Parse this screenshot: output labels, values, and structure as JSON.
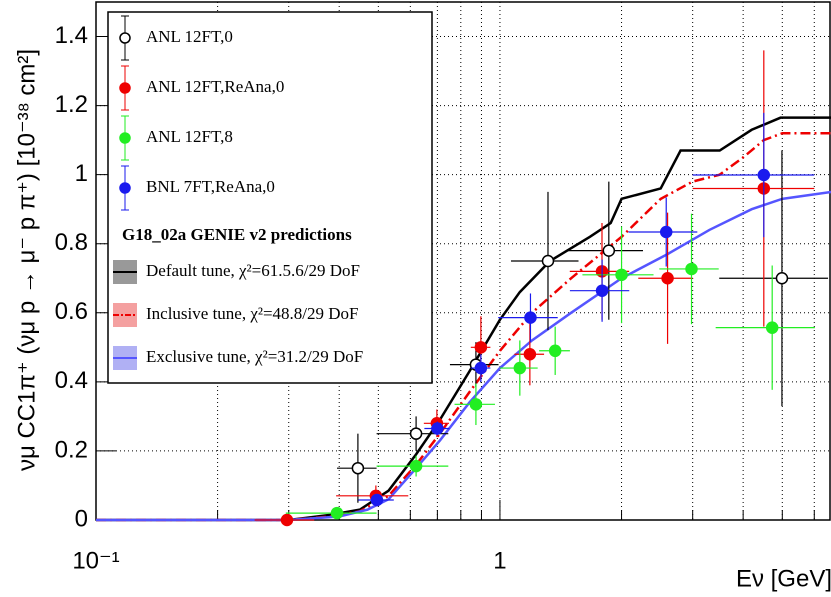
{
  "chart_data": {
    "type": "scatter",
    "x_label": "Eν [GeV]",
    "y_label": "νμ CC1π⁺ (νμ p → μ⁻ p π⁺) [10⁻³⁸ cm²]",
    "xscale": "log",
    "xlim": [
      0.1,
      6.6
    ],
    "ylim": [
      0,
      1.5
    ],
    "xticks": [
      {
        "value": 0.1,
        "label": "10⁻¹"
      },
      1
    ],
    "xgrid": [
      0.2,
      0.3,
      0.4,
      0.5,
      0.6,
      0.7,
      0.8,
      0.9,
      2,
      3,
      4,
      5,
      6
    ],
    "yticks": [
      0,
      0.2,
      0.4,
      0.6,
      0.8,
      1,
      1.2,
      1.4
    ],
    "grid": true,
    "legend_title": "G18_02a GENIE v2 predictions",
    "series": [
      {
        "name": "ANL 12FT,0",
        "style": "points",
        "color": "#000000",
        "open": true,
        "x": [
          0.445,
          0.62,
          0.872,
          1.315,
          1.86,
          4.99
        ],
        "values": [
          0.15,
          0.25,
          0.45,
          0.75,
          0.78,
          0.7
        ],
        "xerr": [
          0.05,
          0.125,
          0.12,
          0.25,
          0.4,
          1.5
        ],
        "yerr": [
          0.1,
          0.05,
          0.065,
          0.2,
          0.2,
          0.37
        ]
      },
      {
        "name": "ANL 12FT,ReAna,0",
        "style": "points",
        "color": "#ee0000",
        "open": false,
        "x": [
          0.297,
          0.493,
          0.698,
          0.897,
          1.186,
          1.789,
          2.6,
          4.5
        ],
        "values": [
          0,
          0.07,
          0.28,
          0.5,
          0.48,
          0.72,
          0.7,
          0.96
        ],
        "xerr": [
          0.05,
          0.1,
          0.05,
          0.05,
          0.1,
          0.3,
          0.4,
          1.5
        ],
        "yerr": [
          0.01,
          0.03,
          0.04,
          0.09,
          0.09,
          0.14,
          0.19,
          0.4
        ]
      },
      {
        "name": "ANL 12FT,8",
        "style": "points",
        "color": "#22ee22",
        "open": false,
        "x": [
          0.395,
          0.62,
          0.872,
          1.12,
          1.37,
          2.0,
          2.98,
          4.72
        ],
        "values": [
          0.02,
          0.156,
          0.335,
          0.44,
          0.49,
          0.71,
          0.727,
          0.557
        ],
        "xerr": [
          0.1,
          0.125,
          0.1,
          0.12,
          0.12,
          0.4,
          0.5,
          1.3
        ],
        "yerr": [
          0.01,
          0.03,
          0.06,
          0.08,
          0.07,
          0.14,
          0.16,
          0.18
        ]
      },
      {
        "name": "BNL 7FT,ReAna,0",
        "style": "points",
        "color": "#1a1aee",
        "open": false,
        "x": [
          0.496,
          0.7,
          0.897,
          1.19,
          1.79,
          2.58,
          4.5
        ],
        "values": [
          0.058,
          0.265,
          0.44,
          0.586,
          0.664,
          0.834,
          0.999
        ],
        "xerr": [
          0.05,
          0.05,
          0.05,
          0.2,
          0.3,
          0.5,
          1.5
        ],
        "yerr": [
          0.01,
          0.02,
          0.04,
          0.07,
          0.09,
          0.1,
          0.18
        ]
      },
      {
        "name": "Default tune, χ²=61.5.6/29 DoF",
        "style": "line",
        "color": "#000000",
        "band_color": "#999999",
        "dash": "none",
        "x": [
          0.1,
          0.3,
          0.38,
          0.45,
          0.53,
          0.62,
          0.71,
          0.84,
          1.0,
          1.12,
          1.33,
          1.67,
          1.88,
          2.0,
          2.5,
          2.8,
          3.5,
          4.2,
          4.95,
          6.6
        ],
        "values": [
          0,
          0,
          0.015,
          0.03,
          0.085,
          0.19,
          0.29,
          0.43,
          0.58,
          0.66,
          0.75,
          0.82,
          0.86,
          0.93,
          0.96,
          1.07,
          1.07,
          1.13,
          1.165,
          1.165
        ]
      },
      {
        "name": "Inclusive tune, χ²=48.8/29 DoF",
        "style": "line",
        "color": "#ee0000",
        "band_color": "#f4a0a0",
        "dash": "10 4 2 4",
        "x": [
          0.1,
          0.3,
          0.38,
          0.45,
          0.53,
          0.62,
          0.71,
          0.84,
          1.0,
          1.2,
          1.5,
          2.0,
          2.5,
          3.0,
          3.5,
          4.0,
          4.5,
          5.0,
          6.6
        ],
        "values": [
          0,
          0,
          0.01,
          0.025,
          0.07,
          0.16,
          0.25,
          0.37,
          0.49,
          0.6,
          0.7,
          0.82,
          0.93,
          0.98,
          1.0,
          1.05,
          1.1,
          1.12,
          1.12
        ]
      },
      {
        "name": "Exclusive tune, χ²=31.2/29 DoF",
        "style": "line",
        "color": "#5555ff",
        "band_color": "#b0b0f4",
        "dash": "none",
        "x": [
          0.1,
          0.3,
          0.4,
          0.47,
          0.53,
          0.62,
          0.71,
          0.84,
          1.0,
          1.2,
          1.5,
          2.0,
          2.6,
          3.3,
          4.2,
          5.0,
          6.6
        ],
        "values": [
          0,
          0,
          0.01,
          0.03,
          0.06,
          0.15,
          0.23,
          0.34,
          0.44,
          0.52,
          0.6,
          0.7,
          0.77,
          0.84,
          0.9,
          0.93,
          0.95
        ]
      }
    ]
  }
}
